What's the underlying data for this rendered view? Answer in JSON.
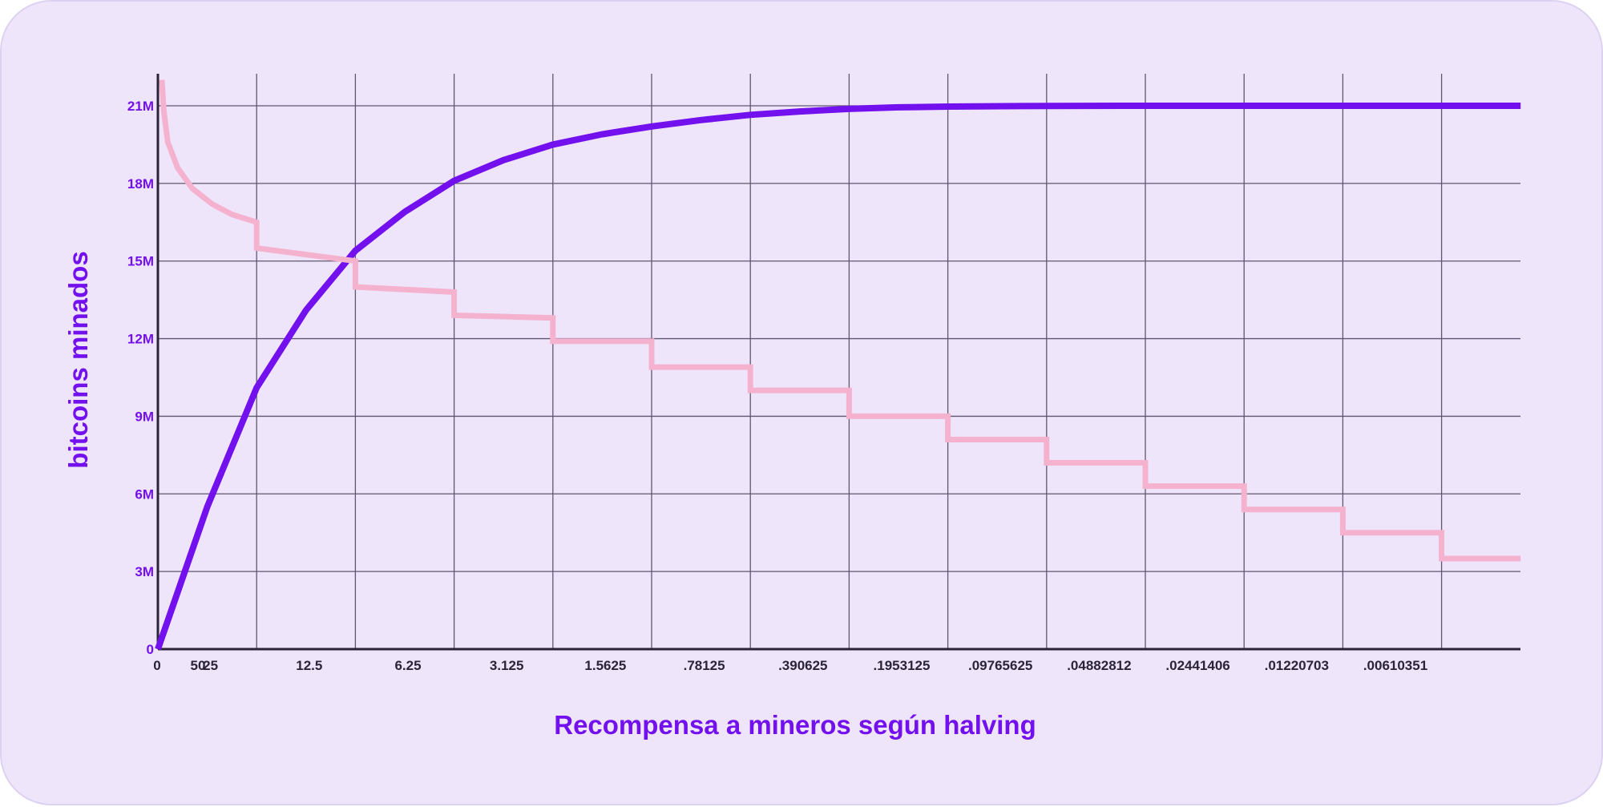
{
  "colors": {
    "background": "#efe5fb",
    "border": "#ddd1f2",
    "grid": "#5f5670",
    "axis": "#2b2438",
    "accent": "#7210ee",
    "reward": "#f4b2cf",
    "tick_x": "#2b2438"
  },
  "chart_data": {
    "type": "line",
    "xlabel": "Recompensa a mineros según halving",
    "ylabel": "bitcoins minados",
    "ylim": [
      0,
      22200000
    ],
    "y_ticks": [
      {
        "value": 0,
        "label": "0"
      },
      {
        "value": 3000000,
        "label": "3M"
      },
      {
        "value": 6000000,
        "label": "6M"
      },
      {
        "value": 9000000,
        "label": "9M"
      },
      {
        "value": 12000000,
        "label": "12M"
      },
      {
        "value": 15000000,
        "label": "15M"
      },
      {
        "value": 18000000,
        "label": "18M"
      },
      {
        "value": 21000000,
        "label": "21M"
      }
    ],
    "x_tick_labels": [
      "0",
      "50",
      "25",
      "12.5",
      "6.25",
      "3.125",
      "1.5625",
      ".78125",
      ".390625",
      ".1953125",
      ".09765625",
      ".04882812",
      ".02441406",
      ".01220703",
      ".00610351"
    ],
    "halving_periods": 13.8,
    "grid": true,
    "series": [
      {
        "key": "mined",
        "color": "#7210ee",
        "points": [
          [
            0,
            0
          ],
          [
            0.5,
            5500000
          ],
          [
            1,
            10100000
          ],
          [
            1.5,
            13100000
          ],
          [
            2,
            15400000
          ],
          [
            2.5,
            16900000
          ],
          [
            3,
            18100000
          ],
          [
            3.5,
            18900000
          ],
          [
            4,
            19500000
          ],
          [
            4.5,
            19900000
          ],
          [
            5,
            20200000
          ],
          [
            5.5,
            20450000
          ],
          [
            6,
            20650000
          ],
          [
            6.5,
            20780000
          ],
          [
            7,
            20880000
          ],
          [
            7.5,
            20940000
          ],
          [
            8,
            20970000
          ],
          [
            9,
            20995000
          ],
          [
            10,
            21000000
          ],
          [
            13.8,
            21000000
          ]
        ]
      },
      {
        "key": "reward",
        "color": "#f4b2cf",
        "points": [
          [
            0.04,
            22000000
          ],
          [
            0.06,
            20800000
          ],
          [
            0.1,
            19600000
          ],
          [
            0.2,
            18600000
          ],
          [
            0.35,
            17800000
          ],
          [
            0.55,
            17200000
          ],
          [
            0.75,
            16800000
          ],
          [
            1,
            16500000
          ],
          [
            1,
            15500000
          ],
          [
            2,
            15000000
          ],
          [
            2,
            14000000
          ],
          [
            3,
            13800000
          ],
          [
            3,
            12900000
          ],
          [
            4,
            12800000
          ],
          [
            4,
            11900000
          ],
          [
            5,
            11900000
          ],
          [
            5,
            10900000
          ],
          [
            6,
            10900000
          ],
          [
            6,
            10000000
          ],
          [
            7,
            10000000
          ],
          [
            7,
            9000000
          ],
          [
            8,
            9000000
          ],
          [
            8,
            8100000
          ],
          [
            9,
            8100000
          ],
          [
            9,
            7200000
          ],
          [
            10,
            7200000
          ],
          [
            10,
            6300000
          ],
          [
            11,
            6300000
          ],
          [
            11,
            5400000
          ],
          [
            12,
            5400000
          ],
          [
            12,
            4500000
          ],
          [
            13,
            4500000
          ],
          [
            13,
            3500000
          ],
          [
            13.8,
            3500000
          ]
        ]
      }
    ]
  }
}
